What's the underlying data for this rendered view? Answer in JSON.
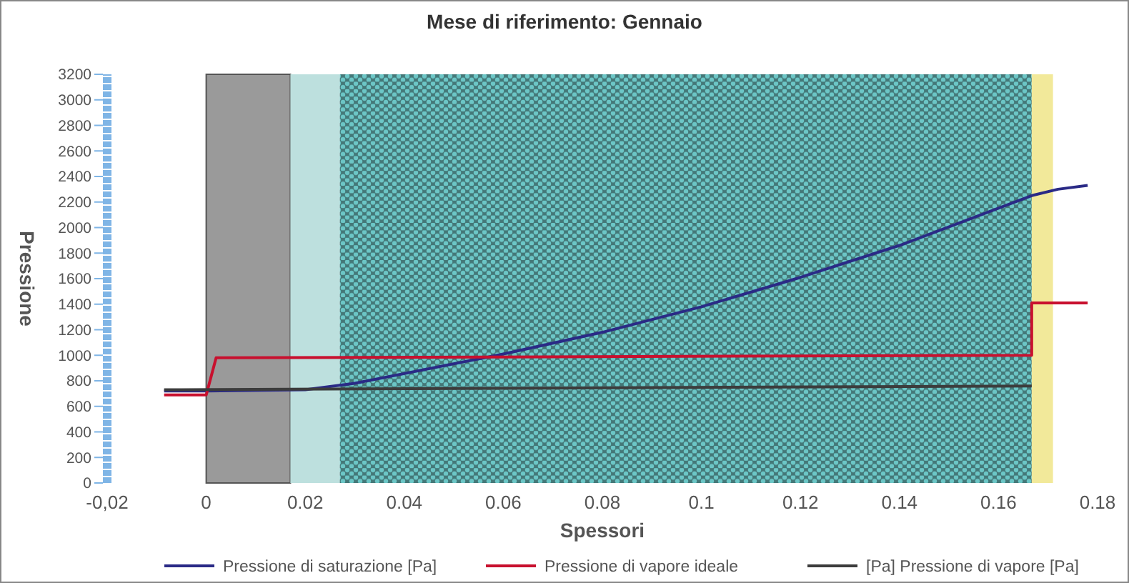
{
  "chart_data": {
    "type": "line",
    "title": "Mese di riferimento: Gennaio",
    "xlabel": "Spessori",
    "ylabel": "Pressione",
    "xlim": [
      -0.02,
      0.18
    ],
    "xticks": [
      {
        "value": -0.02,
        "label": "-0,02"
      },
      0,
      0.02,
      0.04,
      0.06,
      0.08,
      0.1,
      0.12,
      0.14,
      0.16,
      0.18
    ],
    "ylim": [
      0,
      3200
    ],
    "yticks": [
      0,
      200,
      400,
      600,
      800,
      1000,
      1200,
      1400,
      1600,
      1800,
      2000,
      2200,
      2400,
      2600,
      2800,
      3000,
      3200
    ],
    "grid": false,
    "legend": "bottom",
    "marker": "none",
    "line_style": "solid",
    "bands": [
      {
        "axis": "x",
        "from": 0,
        "to": 0.017,
        "color": "#9a9a9a"
      },
      {
        "axis": "x",
        "from": 0.017,
        "to": 0.027,
        "color": "#bde0de"
      },
      {
        "axis": "x",
        "from": 0.027,
        "to": 0.1667,
        "color": "#6cc7c7"
      },
      {
        "axis": "x",
        "from": 0.1667,
        "to": 0.171,
        "color": "#f2e99a"
      }
    ],
    "series": [
      {
        "name": "Pressione di saturazione [Pa]",
        "color": "#2a2a86",
        "x": [
          -0.0085,
          0,
          0.02,
          0.03,
          0.06,
          0.08,
          0.1,
          0.12,
          0.14,
          0.1667,
          0.172,
          0.178
        ],
        "values": [
          720,
          720,
          730,
          780,
          1010,
          1180,
          1380,
          1610,
          1860,
          2250,
          2300,
          2330
        ]
      },
      {
        "name": "Pressione di vapore ideale",
        "color": "#c8102e",
        "x": [
          -0.0085,
          0,
          0.002,
          0.1667,
          0.1667,
          0.178
        ],
        "values": [
          690,
          690,
          980,
          1000,
          1410,
          1410
        ]
      },
      {
        "name": "[Pa] Pressione di vapore [Pa]",
        "color": "#3c3c3c",
        "x": [
          -0.0085,
          0.1667
        ],
        "values": [
          730,
          760
        ]
      }
    ]
  }
}
